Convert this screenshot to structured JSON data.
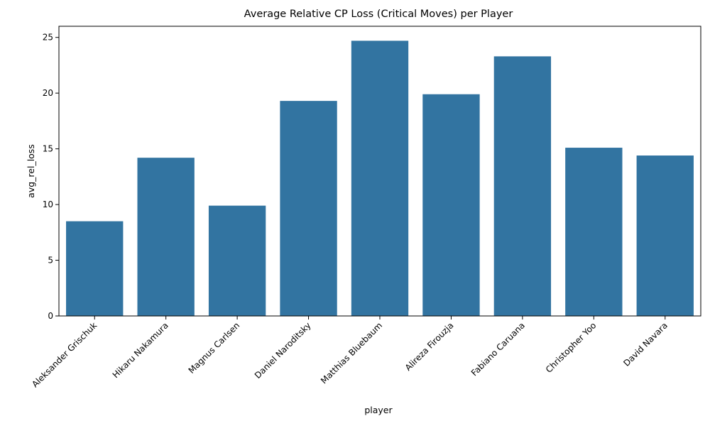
{
  "chart_data": {
    "type": "bar",
    "title": "Average Relative CP Loss (Critical Moves) per Player",
    "xlabel": "player",
    "ylabel": "avg_rel_loss",
    "categories": [
      "Aleksander Grischuk",
      "Hikaru Nakamura",
      "Magnus Carlsen",
      "Daniel Naroditsky",
      "Matthias Bluebaum",
      "Alireza Firouzja",
      "Fabiano Caruana",
      "Christopher Yoo",
      "David Navara"
    ],
    "values": [
      8.5,
      14.2,
      9.9,
      19.3,
      24.7,
      19.9,
      23.3,
      15.1,
      14.4
    ],
    "ylim": [
      0,
      26
    ],
    "yticks": [
      0,
      5,
      10,
      15,
      20,
      25
    ],
    "bar_color": "#3274a1",
    "grid": false,
    "legend": "none"
  }
}
